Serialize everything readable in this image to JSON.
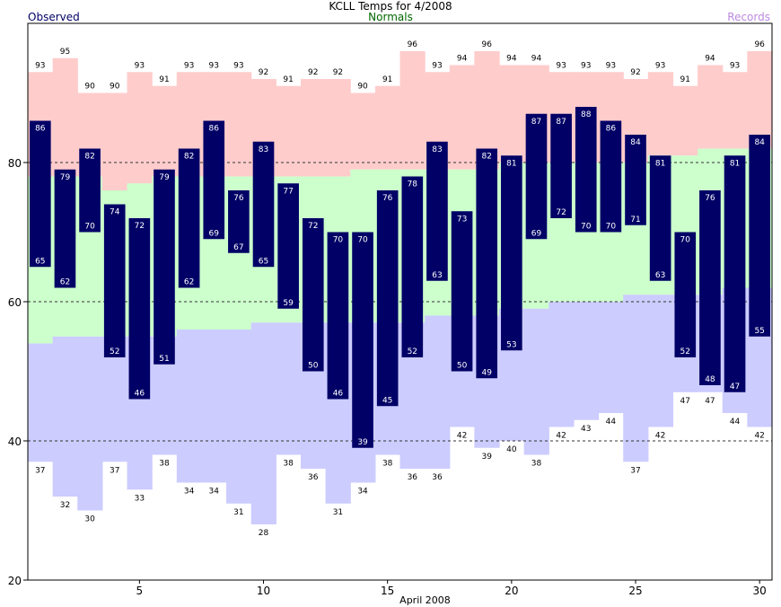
{
  "chart_data": {
    "type": "bar",
    "title": "KCLL Temps for 4/2008",
    "xlabel": "April 2008",
    "ylabel": "",
    "ylim": [
      20,
      100
    ],
    "xlim": [
      1,
      30
    ],
    "yticks": [
      20,
      40,
      60,
      80
    ],
    "xticks": [
      5,
      10,
      15,
      20,
      25,
      30
    ],
    "grid_y": [
      40,
      60,
      80
    ],
    "legend": [
      {
        "label": "Observed",
        "color": "#000066",
        "position": "top-left"
      },
      {
        "label": "Normals",
        "color": "#006600",
        "position": "top-center"
      },
      {
        "label": "Records",
        "color": "#bb88dd",
        "position": "top-right"
      }
    ],
    "colors": {
      "observed": "#000066",
      "normal_band": "#ccffcc",
      "record_high_band": "#ffcccc",
      "record_low_band": "#ccccff",
      "observed_label": "#ffffff",
      "record_label": "#000000"
    },
    "days": [
      1,
      2,
      3,
      4,
      5,
      6,
      7,
      8,
      9,
      10,
      11,
      12,
      13,
      14,
      15,
      16,
      17,
      18,
      19,
      20,
      21,
      22,
      23,
      24,
      25,
      26,
      27,
      28,
      29,
      30
    ],
    "series": [
      {
        "name": "Observed High",
        "values": [
          86,
          79,
          82,
          74,
          72,
          79,
          82,
          86,
          76,
          83,
          77,
          72,
          70,
          70,
          76,
          78,
          83,
          73,
          82,
          81,
          87,
          87,
          88,
          86,
          84,
          81,
          70,
          76,
          81,
          84
        ]
      },
      {
        "name": "Observed Low",
        "values": [
          65,
          62,
          70,
          52,
          46,
          51,
          62,
          69,
          67,
          65,
          59,
          50,
          46,
          39,
          45,
          52,
          63,
          50,
          49,
          53,
          69,
          72,
          70,
          70,
          71,
          63,
          52,
          48,
          47,
          55
        ]
      },
      {
        "name": "Record High",
        "values": [
          93,
          95,
          90,
          90,
          93,
          91,
          93,
          93,
          93,
          92,
          91,
          92,
          92,
          90,
          91,
          96,
          93,
          94,
          96,
          94,
          94,
          93,
          93,
          93,
          92,
          93,
          91,
          94,
          93,
          96
        ]
      },
      {
        "name": "Record Low",
        "values": [
          37,
          32,
          30,
          37,
          33,
          38,
          34,
          34,
          31,
          28,
          38,
          36,
          31,
          34,
          38,
          36,
          36,
          42,
          39,
          40,
          38,
          42,
          43,
          44,
          37,
          42,
          47,
          47,
          44,
          42
        ]
      },
      {
        "name": "Normal High",
        "values": [
          78,
          78,
          78,
          76,
          77,
          78,
          78,
          78,
          78,
          78,
          78,
          78,
          78,
          79,
          79,
          79,
          79,
          79,
          79,
          80,
          80,
          80,
          80,
          80,
          80,
          81,
          81,
          82,
          82,
          82
        ]
      },
      {
        "name": "Normal Low",
        "values": [
          54,
          55,
          55,
          55,
          55,
          55,
          56,
          56,
          56,
          57,
          57,
          57,
          57,
          57,
          57,
          57,
          58,
          58,
          58,
          59,
          59,
          60,
          60,
          60,
          61,
          61,
          61,
          61,
          62,
          62
        ]
      }
    ]
  }
}
